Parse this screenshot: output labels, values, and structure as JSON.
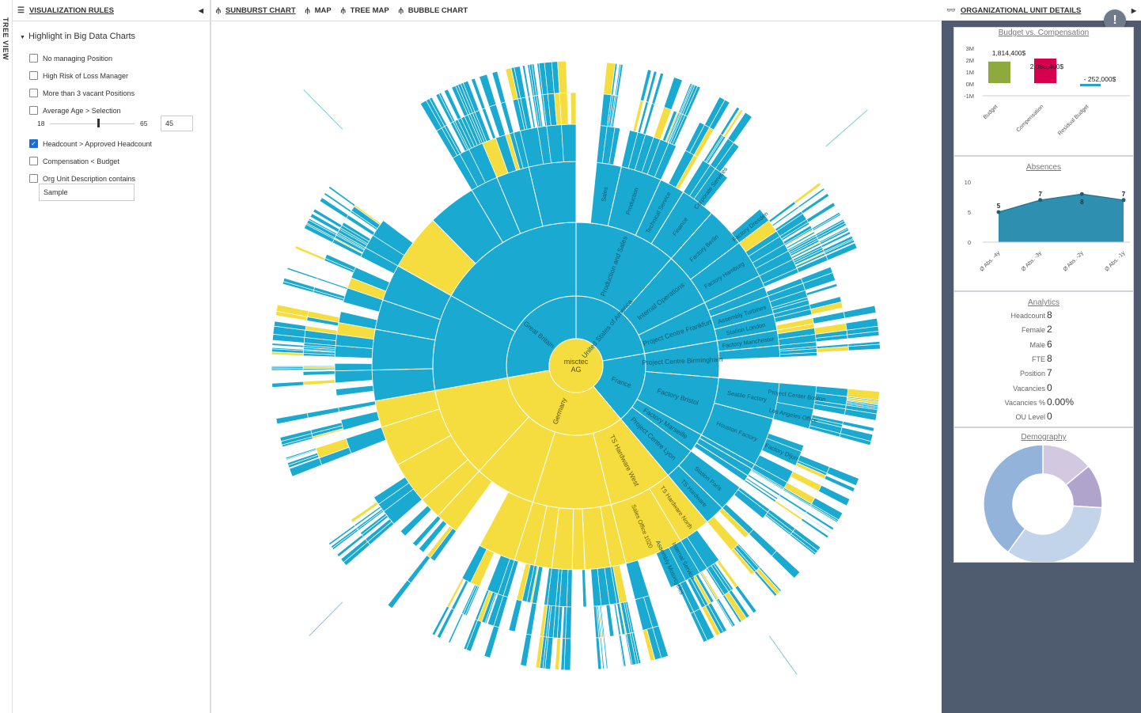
{
  "rail": {
    "label": "TREE VIEW"
  },
  "left_panel": {
    "title": "VISUALIZATION RULES",
    "section": "Highlight in Big Data Charts",
    "rules": [
      {
        "label": "No managing Position",
        "checked": false
      },
      {
        "label": "High Risk of Loss Manager",
        "checked": false
      },
      {
        "label": "More than 3 vacant Positions",
        "checked": false
      },
      {
        "label": "Average Age > Selection",
        "checked": false
      },
      {
        "label": "Headcount > Approved Headcount",
        "checked": true
      },
      {
        "label": "Compensation < Budget",
        "checked": false
      },
      {
        "label": "Org Unit Description contains",
        "checked": false
      }
    ],
    "age_slider": {
      "min": "18",
      "max": "65",
      "value": "45"
    },
    "description_input": "Sample"
  },
  "tabs": [
    {
      "label": "SUNBURST CHART",
      "active": true
    },
    {
      "label": "MAP",
      "active": false
    },
    {
      "label": "TREE MAP",
      "active": false
    },
    {
      "label": "BUBBLE CHART",
      "active": false
    }
  ],
  "sunburst": {
    "root": [
      "misctec",
      "AG"
    ],
    "colors": {
      "normal": "#1aa9d0",
      "highlight": "#f6dd3f",
      "line": "#ffffff"
    },
    "ring1": [
      {
        "label": "United States of America",
        "value": 20,
        "hl": false
      },
      {
        "label": "France",
        "value": 15,
        "hl": false
      },
      {
        "label": "Germany",
        "value": 30,
        "hl": true
      },
      {
        "label": "Great Britain",
        "value": 25,
        "hl": false
      }
    ],
    "visible_labels": [
      "Production and Sales",
      "Sales",
      "Production",
      "Technical Service",
      "Finance",
      "Corporate Services",
      "Internal Operations",
      "Factory Berlin",
      "Factory Dresden",
      "Factory Hamburg",
      "Project Centre Frankfurt",
      "Assembly Turbines",
      "Station London",
      "Project Centre Birmingham",
      "Factory Manchester",
      "Factory Bristol",
      "Seattle Factory",
      "Project Center Boston",
      "Los Angeles Office",
      "Houston Factory",
      "Factory Dijon",
      "Factory Marseille",
      "Project Centre Lyon",
      "Station Paris",
      "TS Hardware",
      "TS Hardware West",
      "TS Hardware North",
      "Sales Office 1020",
      "Internal Service",
      "Assembly Motorcycles"
    ]
  },
  "org_unit": {
    "title": "ORGANIZATIONAL UNIT DETAILS",
    "budget_chart": {
      "title": "Budget vs. Compensation",
      "y_ticks": [
        "3M",
        "2M",
        "1M",
        "0M",
        "-1M"
      ],
      "bars": [
        {
          "label": "Budget",
          "value": 1814400,
          "display": "1,814,400$",
          "color": "#8faa3c"
        },
        {
          "label": "Compensation",
          "value": 2066400,
          "display": "2,066,400$",
          "color": "#d6004f"
        },
        {
          "label": "Residual Budget",
          "value": -252000,
          "display": "- 252,000$",
          "color": "#2aa0c8"
        }
      ]
    },
    "absences_chart": {
      "title": "Absences",
      "y_ticks": [
        "10",
        "5",
        "0"
      ],
      "points": [
        {
          "label": "Ø Abs. -4y",
          "value": 5
        },
        {
          "label": "Ø Abs. -3y",
          "value": 7
        },
        {
          "label": "Ø Abs. -2y",
          "value": 8
        },
        {
          "label": "Ø Abs. -1y",
          "value": 7
        }
      ],
      "color": "#2e8fb1"
    },
    "analytics": {
      "title": "Analytics",
      "rows": [
        {
          "label": "Headcount",
          "value": "8"
        },
        {
          "label": "Female",
          "value": "2"
        },
        {
          "label": "Male",
          "value": "6"
        },
        {
          "label": "FTE",
          "value": "8"
        },
        {
          "label": "Position",
          "value": "7"
        },
        {
          "label": "Vacancies",
          "value": "0"
        },
        {
          "label": "Vacancies %",
          "value": "0.00%"
        },
        {
          "label": "OU Level",
          "value": "0"
        }
      ]
    },
    "demography": {
      "title": "Demography",
      "slices": [
        {
          "value": 14,
          "color": "#d2c8e0"
        },
        {
          "value": 12,
          "color": "#b0a4cc"
        },
        {
          "value": 34,
          "color": "#c2d4ea"
        },
        {
          "value": 40,
          "color": "#93b3da"
        }
      ]
    }
  }
}
